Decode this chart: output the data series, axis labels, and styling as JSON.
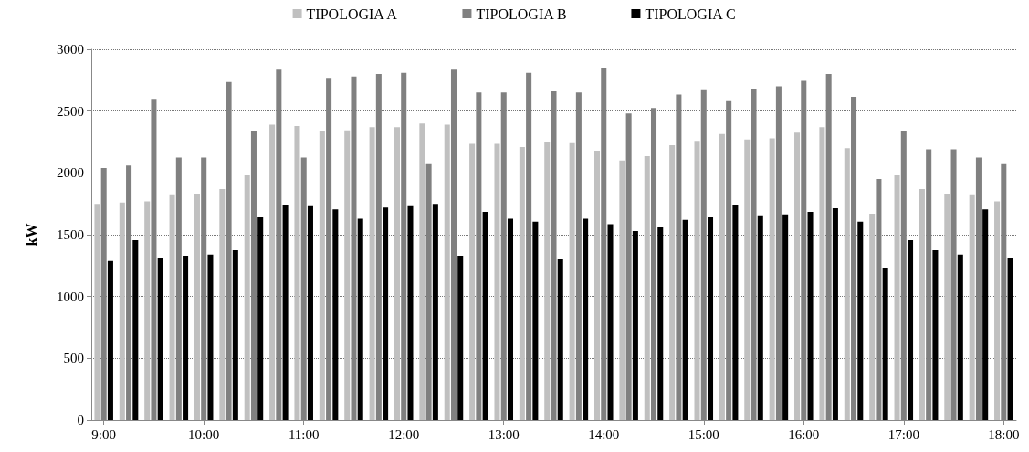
{
  "chart_data": {
    "type": "bar",
    "ylabel": "kW",
    "categories": [
      "9:00",
      null,
      null,
      null,
      "10:00",
      null,
      null,
      null,
      "11:00",
      null,
      null,
      null,
      "12:00",
      null,
      null,
      null,
      "13:00",
      null,
      null,
      null,
      "14:00",
      null,
      null,
      null,
      "15:00",
      null,
      null,
      null,
      "16:00",
      null,
      null,
      null,
      "17:00",
      null,
      null,
      null,
      "18:00"
    ],
    "series": [
      {
        "name": "TIPOLOGIA A",
        "color": "#c0c0c0",
        "values": [
          1750,
          1760,
          1770,
          1820,
          1830,
          1870,
          1980,
          2390,
          2380,
          2335,
          2345,
          2370,
          2370,
          2400,
          2390,
          2235,
          2235,
          2210,
          2250,
          2240,
          2180,
          2100,
          2135,
          2225,
          2260,
          2315,
          2270,
          2280,
          2325,
          2370,
          2200,
          1670,
          1980,
          1870,
          1830,
          1820,
          1770
        ]
      },
      {
        "name": "TIPOLOGIA B",
        "color": "#808080",
        "values": [
          2040,
          2060,
          2600,
          2125,
          2125,
          2735,
          2335,
          2835,
          2125,
          2770,
          2780,
          2800,
          2810,
          2070,
          2835,
          2650,
          2650,
          2810,
          2660,
          2650,
          2845,
          2480,
          2525,
          2635,
          2670,
          2580,
          2680,
          2700,
          2745,
          2800,
          2615,
          1950,
          2335,
          2190,
          2190,
          2125,
          2070
        ]
      },
      {
        "name": "TIPOLOGIA C",
        "color": "#000000",
        "values": [
          1287,
          1455,
          1310,
          1330,
          1340,
          1375,
          1640,
          1740,
          1730,
          1705,
          1630,
          1720,
          1730,
          1750,
          1330,
          1685,
          1630,
          1605,
          1300,
          1630,
          1585,
          1530,
          1560,
          1620,
          1640,
          1740,
          1650,
          1665,
          1685,
          1715,
          1605,
          1230,
          1455,
          1375,
          1340,
          1705,
          1310
        ]
      }
    ],
    "ylim": [
      0,
      3000
    ],
    "yticks": [
      0,
      500,
      1000,
      1500,
      2000,
      2500,
      3000
    ],
    "grid": "y",
    "legend": "top"
  }
}
